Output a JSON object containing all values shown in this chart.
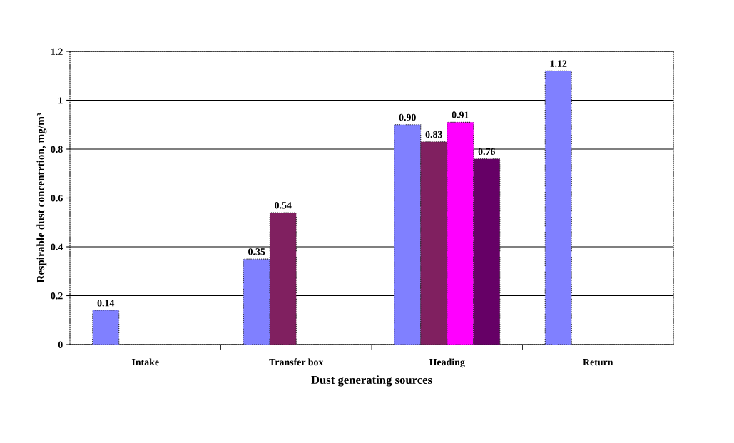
{
  "chart_data": {
    "type": "bar",
    "xlabel": "Dust generating sources",
    "ylabel": "Respirable dust concentrtion, mg/m³",
    "categories": [
      "Intake",
      "Transfer box",
      "Heading",
      "Return"
    ],
    "series": [
      {
        "color": "#8080ff",
        "values": [
          0.14,
          0.35,
          0.9,
          1.12
        ],
        "value_labels": [
          "0.14",
          "0.35",
          "0.90",
          "1.12"
        ]
      },
      {
        "color": "#802060",
        "values": [
          null,
          0.54,
          0.83,
          null
        ],
        "value_labels": [
          null,
          "0.54",
          "0.83",
          null
        ]
      },
      {
        "color": "#ff00ff",
        "values": [
          null,
          null,
          0.91,
          null
        ],
        "value_labels": [
          null,
          null,
          "0.91",
          null
        ]
      },
      {
        "color": "#660066",
        "values": [
          null,
          null,
          0.76,
          null
        ],
        "value_labels": [
          null,
          null,
          "0.76",
          null
        ]
      }
    ],
    "ylim": [
      0,
      1.2
    ],
    "yticks": [
      0,
      0.2,
      0.4,
      0.6,
      0.8,
      1,
      1.2
    ],
    "grid": "y"
  }
}
